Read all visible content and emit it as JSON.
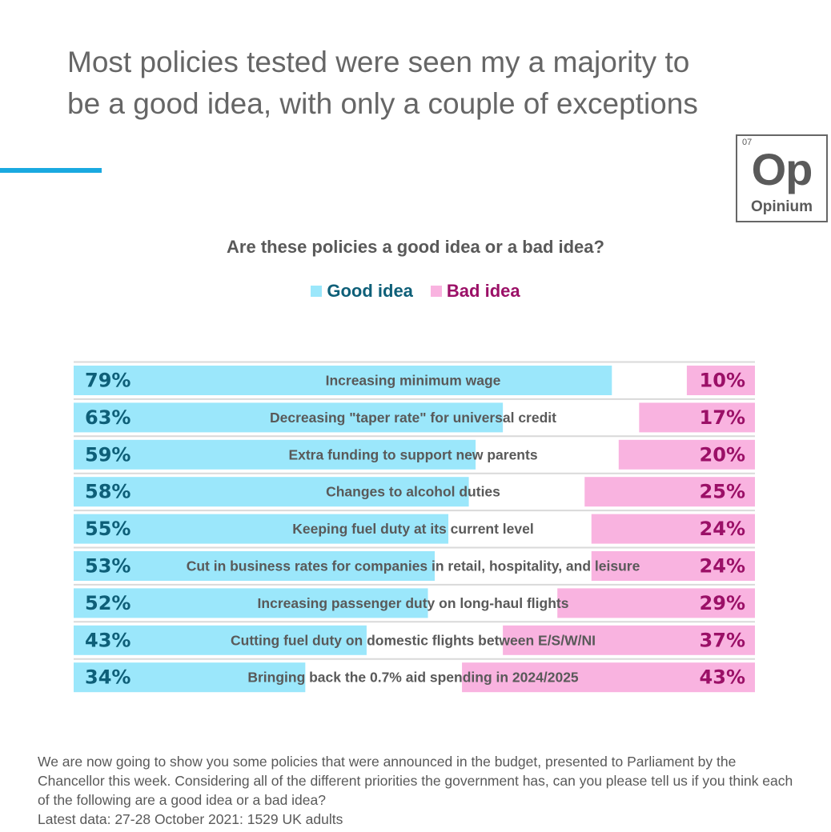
{
  "headline": "Most policies tested were seen my a majority to be a good idea, with only a couple of exceptions",
  "logo": {
    "number": "07",
    "symbol": "Op",
    "name": "Opinium"
  },
  "colors": {
    "good": "#9be7fb",
    "bad": "#f9b3e0",
    "good_text": "#0e5f78",
    "bad_text": "#9b1067",
    "accent": "#1aa9e0"
  },
  "chart_data": {
    "type": "bar",
    "orientation": "horizontal",
    "stacking": "diverging",
    "title": "Are these policies a good idea or a bad idea?",
    "legend": [
      "Good idea",
      "Bad idea"
    ],
    "legend_position": "top-center",
    "xlim": [
      0,
      100
    ],
    "categories": [
      "Increasing minimum wage",
      "Decreasing \"taper rate\" for universal credit",
      "Extra funding to support new parents",
      "Changes to alcohol duties",
      "Keeping fuel duty at its current level",
      "Cut in business rates for companies in retail, hospitality, and leisure",
      "Increasing passenger duty on long-haul flights",
      "Cutting fuel duty on domestic flights between E/S/W/NI",
      "Bringing back the 0.7% aid spending in 2024/2025"
    ],
    "series": [
      {
        "name": "Good idea",
        "values": [
          79,
          63,
          59,
          58,
          55,
          53,
          52,
          43,
          34
        ]
      },
      {
        "name": "Bad idea",
        "values": [
          10,
          17,
          20,
          25,
          24,
          24,
          29,
          37,
          43
        ]
      }
    ],
    "label_format": "{v}%"
  },
  "footnote": {
    "question": "We are now going to show you some policies that were announced in the budget, presented to Parliament by the Chancellor this week.  Considering all of the different priorities the government has, can you please tell us if you think each of the following are a good idea or a bad idea?",
    "source": "Latest data: 27-28 October 2021: 1529 UK adults"
  }
}
